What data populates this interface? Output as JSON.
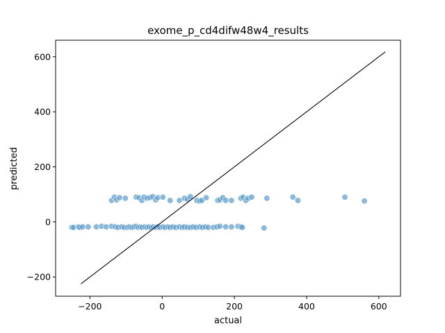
{
  "chart_data": {
    "type": "scatter",
    "title": "exome_p_cd4difw48w4_results",
    "xlabel": "actual",
    "ylabel": "predicted",
    "xlim": [
      -295,
      660
    ],
    "ylim": [
      -270,
      660
    ],
    "xticks": [
      -200,
      0,
      200,
      400,
      600
    ],
    "yticks": [
      -200,
      0,
      200,
      400,
      600
    ],
    "xtick_labels": [
      "−200",
      "0",
      "200",
      "400",
      "600"
    ],
    "ytick_labels": [
      "−200",
      "0",
      "200",
      "400",
      "600"
    ],
    "grid": false,
    "point_color": "#5b9bc9",
    "line_color": "#000000",
    "reference_line": {
      "x": [
        -225,
        618
      ],
      "y": [
        -225,
        618
      ]
    },
    "series": [
      {
        "points": [
          [
            -250,
            -20
          ],
          [
            -245,
            -20
          ],
          [
            -232,
            -18
          ],
          [
            -228,
            -20
          ],
          [
            -220,
            -18
          ],
          [
            -205,
            -18
          ],
          [
            -182,
            -18
          ],
          [
            -168,
            -16
          ],
          [
            -155,
            -18
          ],
          [
            -140,
            -16
          ],
          [
            -130,
            -18
          ],
          [
            -122,
            -20
          ],
          [
            -112,
            -18
          ],
          [
            -105,
            -20
          ],
          [
            -96,
            -20
          ],
          [
            -90,
            -18
          ],
          [
            -84,
            -20
          ],
          [
            -78,
            -18
          ],
          [
            -72,
            -16
          ],
          [
            -66,
            -20
          ],
          [
            -60,
            -18
          ],
          [
            -55,
            -20
          ],
          [
            -48,
            -18
          ],
          [
            -42,
            -20
          ],
          [
            -36,
            -18
          ],
          [
            -30,
            -20
          ],
          [
            -24,
            -18
          ],
          [
            -18,
            -20
          ],
          [
            -12,
            -18
          ],
          [
            -6,
            -20
          ],
          [
            2,
            -18
          ],
          [
            8,
            -20
          ],
          [
            16,
            -18
          ],
          [
            22,
            -20
          ],
          [
            30,
            -18
          ],
          [
            38,
            -20
          ],
          [
            48,
            -18
          ],
          [
            56,
            -20
          ],
          [
            62,
            -18
          ],
          [
            70,
            -20
          ],
          [
            78,
            -20
          ],
          [
            86,
            -18
          ],
          [
            94,
            -20
          ],
          [
            104,
            -18
          ],
          [
            112,
            -20
          ],
          [
            120,
            -18
          ],
          [
            128,
            -20
          ],
          [
            142,
            -20
          ],
          [
            152,
            -18
          ],
          [
            160,
            -16
          ],
          [
            176,
            -18
          ],
          [
            192,
            -18
          ],
          [
            210,
            -16
          ],
          [
            218,
            -18
          ],
          [
            222,
            -20
          ],
          [
            282,
            -22
          ],
          [
            -140,
            78
          ],
          [
            -132,
            90
          ],
          [
            -126,
            80
          ],
          [
            -118,
            88
          ],
          [
            -102,
            86
          ],
          [
            -72,
            90
          ],
          [
            -64,
            88
          ],
          [
            -56,
            78
          ],
          [
            -50,
            90
          ],
          [
            -42,
            86
          ],
          [
            -34,
            88
          ],
          [
            -26,
            92
          ],
          [
            -18,
            80
          ],
          [
            -12,
            88
          ],
          [
            2,
            90
          ],
          [
            22,
            78
          ],
          [
            48,
            78
          ],
          [
            62,
            86
          ],
          [
            70,
            82
          ],
          [
            78,
            92
          ],
          [
            96,
            78
          ],
          [
            104,
            76
          ],
          [
            110,
            78
          ],
          [
            122,
            88
          ],
          [
            154,
            78
          ],
          [
            160,
            80
          ],
          [
            168,
            88
          ],
          [
            176,
            78
          ],
          [
            192,
            78
          ],
          [
            218,
            86
          ],
          [
            224,
            90
          ],
          [
            232,
            78
          ],
          [
            238,
            86
          ],
          [
            248,
            90
          ],
          [
            290,
            86
          ],
          [
            362,
            90
          ],
          [
            376,
            78
          ],
          [
            506,
            90
          ],
          [
            560,
            76
          ]
        ]
      }
    ]
  }
}
